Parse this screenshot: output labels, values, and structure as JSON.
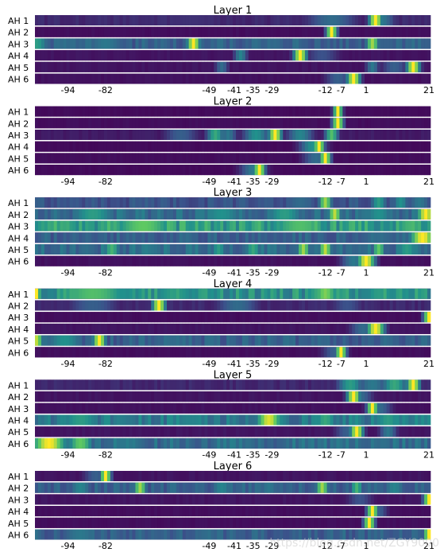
{
  "chart_data": {
    "type": "heatmap",
    "xlim": [
      -104,
      21
    ],
    "x_ticks": [
      -94,
      -82,
      -49,
      -41,
      -35,
      -29,
      -12,
      -7,
      1,
      21
    ],
    "row_labels": [
      "AH 1",
      "AH 2",
      "AH 3",
      "AH 4",
      "AH 5",
      "AH 6"
    ],
    "colormap": [
      "#440154",
      "#3b528b",
      "#21918c",
      "#5ec962",
      "#fde725"
    ],
    "layers": [
      {
        "title": "Layer 1",
        "rows": [
          {
            "base": 0.12,
            "peaks": [
              [
                -10,
                0.35,
                6
              ],
              [
                4,
                1.0,
                1.5
              ],
              [
                6,
                0.4,
                3
              ],
              [
                -55,
                0.15,
                10
              ]
            ]
          },
          {
            "base": 0.04,
            "peaks": [
              [
                -10,
                1.0,
                1.2
              ]
            ]
          },
          {
            "base": 0.3,
            "peaks": [
              [
                -104,
                0.55,
                3
              ],
              [
                -54,
                1.0,
                1.5
              ],
              [
                -95,
                0.35,
                5
              ],
              [
                -82,
                0.4,
                6
              ],
              [
                -28,
                0.35,
                4
              ],
              [
                3,
                0.85,
                1.5
              ],
              [
                -20,
                0.3,
                5
              ]
            ]
          },
          {
            "base": 0.06,
            "peaks": [
              [
                -39,
                0.45,
                1.5
              ],
              [
                -20,
                1.0,
                1.5
              ],
              [
                -13,
                0.25,
                4
              ]
            ]
          },
          {
            "base": 0.06,
            "peaks": [
              [
                -45,
                0.35,
                1.5
              ],
              [
                3,
                0.4,
                1.5
              ],
              [
                16,
                1.0,
                1.5
              ],
              [
                10,
                0.3,
                3
              ]
            ]
          },
          {
            "base": 0.05,
            "peaks": [
              [
                -3,
                1.0,
                1.5
              ],
              [
                -8,
                0.3,
                3
              ]
            ]
          }
        ]
      },
      {
        "title": "Layer 2",
        "rows": [
          {
            "base": 0.03,
            "peaks": [
              [
                -8,
                1.0,
                1.0
              ]
            ]
          },
          {
            "base": 0.04,
            "peaks": [
              [
                -8,
                1.0,
                1.2
              ]
            ]
          },
          {
            "base": 0.08,
            "peaks": [
              [
                -47,
                0.6,
                2
              ],
              [
                -43,
                0.4,
                2
              ],
              [
                -28,
                1.0,
                1.5
              ],
              [
                -34,
                0.5,
                3
              ],
              [
                -20,
                0.45,
                3
              ],
              [
                -10,
                0.7,
                1.5
              ],
              [
                -58,
                0.3,
                4
              ]
            ]
          },
          {
            "base": 0.03,
            "peaks": [
              [
                -14,
                1.0,
                1.2
              ],
              [
                -16,
                0.5,
                3
              ]
            ]
          },
          {
            "base": 0.04,
            "peaks": [
              [
                -12,
                1.0,
                1.2
              ],
              [
                -15,
                0.35,
                3
              ]
            ]
          },
          {
            "base": 0.03,
            "peaks": [
              [
                -33,
                1.0,
                1.3
              ],
              [
                -35,
                0.4,
                3
              ]
            ]
          }
        ]
      },
      {
        "title": "Layer 3",
        "rows": [
          {
            "base": 0.25,
            "peaks": [
              [
                -12,
                0.85,
                1.5
              ],
              [
                5,
                0.55,
                2
              ],
              [
                12,
                0.5,
                2
              ],
              [
                -20,
                0.35,
                5
              ],
              [
                18,
                0.4,
                3
              ]
            ]
          },
          {
            "base": 0.35,
            "peaks": [
              [
                -86,
                0.55,
                6
              ],
              [
                -9,
                0.9,
                1.5
              ],
              [
                20,
                1.0,
                2
              ],
              [
                -45,
                0.5,
                6
              ],
              [
                -25,
                0.55,
                5
              ],
              [
                5,
                0.5,
                4
              ]
            ]
          },
          {
            "base": 0.55,
            "peaks": [
              [
                -70,
                0.75,
                8
              ],
              [
                -20,
                0.7,
                8
              ],
              [
                15,
                0.65,
                5
              ],
              [
                -95,
                0.6,
                5
              ]
            ]
          },
          {
            "base": 0.3,
            "peaks": [
              [
                19,
                1.0,
                3
              ],
              [
                5,
                0.35,
                8
              ]
            ]
          },
          {
            "base": 0.35,
            "peaks": [
              [
                -80,
                0.65,
                2
              ],
              [
                -46,
                0.55,
                2
              ],
              [
                -35,
                0.6,
                2
              ],
              [
                -19,
                0.85,
                1.5
              ],
              [
                -12,
                0.9,
                1.5
              ],
              [
                5,
                0.75,
                1.5
              ],
              [
                14,
                0.55,
                3
              ]
            ]
          },
          {
            "base": 0.05,
            "peaks": [
              [
                1,
                1.0,
                2
              ],
              [
                -3,
                0.4,
                3
              ]
            ]
          }
        ]
      },
      {
        "title": "Layer 4",
        "rows": [
          {
            "base": 0.5,
            "peaks": [
              [
                -104,
                1.0,
                1
              ],
              [
                -86,
                0.7,
                10
              ],
              [
                -60,
                0.55,
                8
              ],
              [
                -12,
                0.8,
                3
              ],
              [
                5,
                0.55,
                5
              ],
              [
                15,
                0.45,
                4
              ]
            ]
          },
          {
            "base": 0.12,
            "peaks": [
              [
                -65,
                1.0,
                1.5
              ],
              [
                -86,
                0.3,
                6
              ],
              [
                -40,
                0.35,
                5
              ],
              [
                -5,
                0.25,
                4
              ]
            ]
          },
          {
            "base": 0.04,
            "peaks": [
              [
                21,
                1.0,
                1.2
              ]
            ]
          },
          {
            "base": 0.06,
            "peaks": [
              [
                4,
                1.0,
                2
              ],
              [
                0,
                0.35,
                3
              ]
            ]
          },
          {
            "base": 0.3,
            "peaks": [
              [
                -104,
                0.9,
                1.5
              ],
              [
                -84,
                1.0,
                1.5
              ],
              [
                -95,
                0.5,
                5
              ],
              [
                -60,
                0.35,
                8
              ],
              [
                -15,
                0.3,
                5
              ]
            ]
          },
          {
            "base": 0.04,
            "peaks": [
              [
                -7,
                1.0,
                1.2
              ],
              [
                -9,
                0.3,
                3
              ]
            ]
          }
        ]
      },
      {
        "title": "Layer 5",
        "rows": [
          {
            "base": 0.12,
            "peaks": [
              [
                -4,
                0.55,
                3
              ],
              [
                10,
                0.6,
                3
              ],
              [
                16,
                1.0,
                1.5
              ],
              [
                3,
                0.4,
                4
              ]
            ]
          },
          {
            "base": 0.06,
            "peaks": [
              [
                -3,
                1.0,
                1.5
              ],
              [
                -1,
                0.35,
                3
              ]
            ]
          },
          {
            "base": 0.05,
            "peaks": [
              [
                3,
                1.0,
                1.2
              ],
              [
                5,
                0.35,
                3
              ]
            ]
          },
          {
            "base": 0.4,
            "peaks": [
              [
                -30,
                0.95,
                3
              ],
              [
                -90,
                0.55,
                6
              ],
              [
                -12,
                0.6,
                3
              ],
              [
                8,
                0.55,
                4
              ],
              [
                -55,
                0.45,
                8
              ]
            ]
          },
          {
            "base": 0.06,
            "peaks": [
              [
                -2,
                1.0,
                1.5
              ],
              [
                8,
                0.4,
                2
              ],
              [
                -5,
                0.3,
                3
              ]
            ]
          },
          {
            "base": 0.35,
            "peaks": [
              [
                -100,
                1.0,
                4
              ],
              [
                -90,
                0.75,
                3
              ],
              [
                -75,
                0.4,
                8
              ]
            ]
          }
        ]
      },
      {
        "title": "Layer 6",
        "rows": [
          {
            "base": 0.06,
            "peaks": [
              [
                -82,
                1.0,
                1.2
              ],
              [
                -85,
                0.3,
                3
              ]
            ]
          },
          {
            "base": 0.3,
            "peaks": [
              [
                -71,
                0.85,
                1.5
              ],
              [
                -13,
                0.85,
                1.5
              ],
              [
                -2,
                0.65,
                1.5
              ],
              [
                -45,
                0.45,
                3
              ],
              [
                -30,
                0.4,
                3
              ],
              [
                -90,
                0.45,
                3
              ],
              [
                10,
                0.45,
                3
              ]
            ]
          },
          {
            "base": 0.06,
            "peaks": [
              [
                21,
                1.0,
                1.2
              ],
              [
                -1,
                0.25,
                3
              ]
            ]
          },
          {
            "base": 0.04,
            "peaks": [
              [
                3,
                1.0,
                1.2
              ],
              [
                5,
                0.3,
                2
              ]
            ]
          },
          {
            "base": 0.04,
            "peaks": [
              [
                2,
                1.0,
                1.2
              ]
            ]
          },
          {
            "base": 0.3,
            "peaks": [
              [
                21,
                1.0,
                1.2
              ],
              [
                -90,
                0.4,
                6
              ],
              [
                -50,
                0.35,
                6
              ],
              [
                5,
                0.3,
                6
              ]
            ]
          }
        ]
      }
    ]
  },
  "watermark": "https://blog.csdn.net/ZGY9000"
}
